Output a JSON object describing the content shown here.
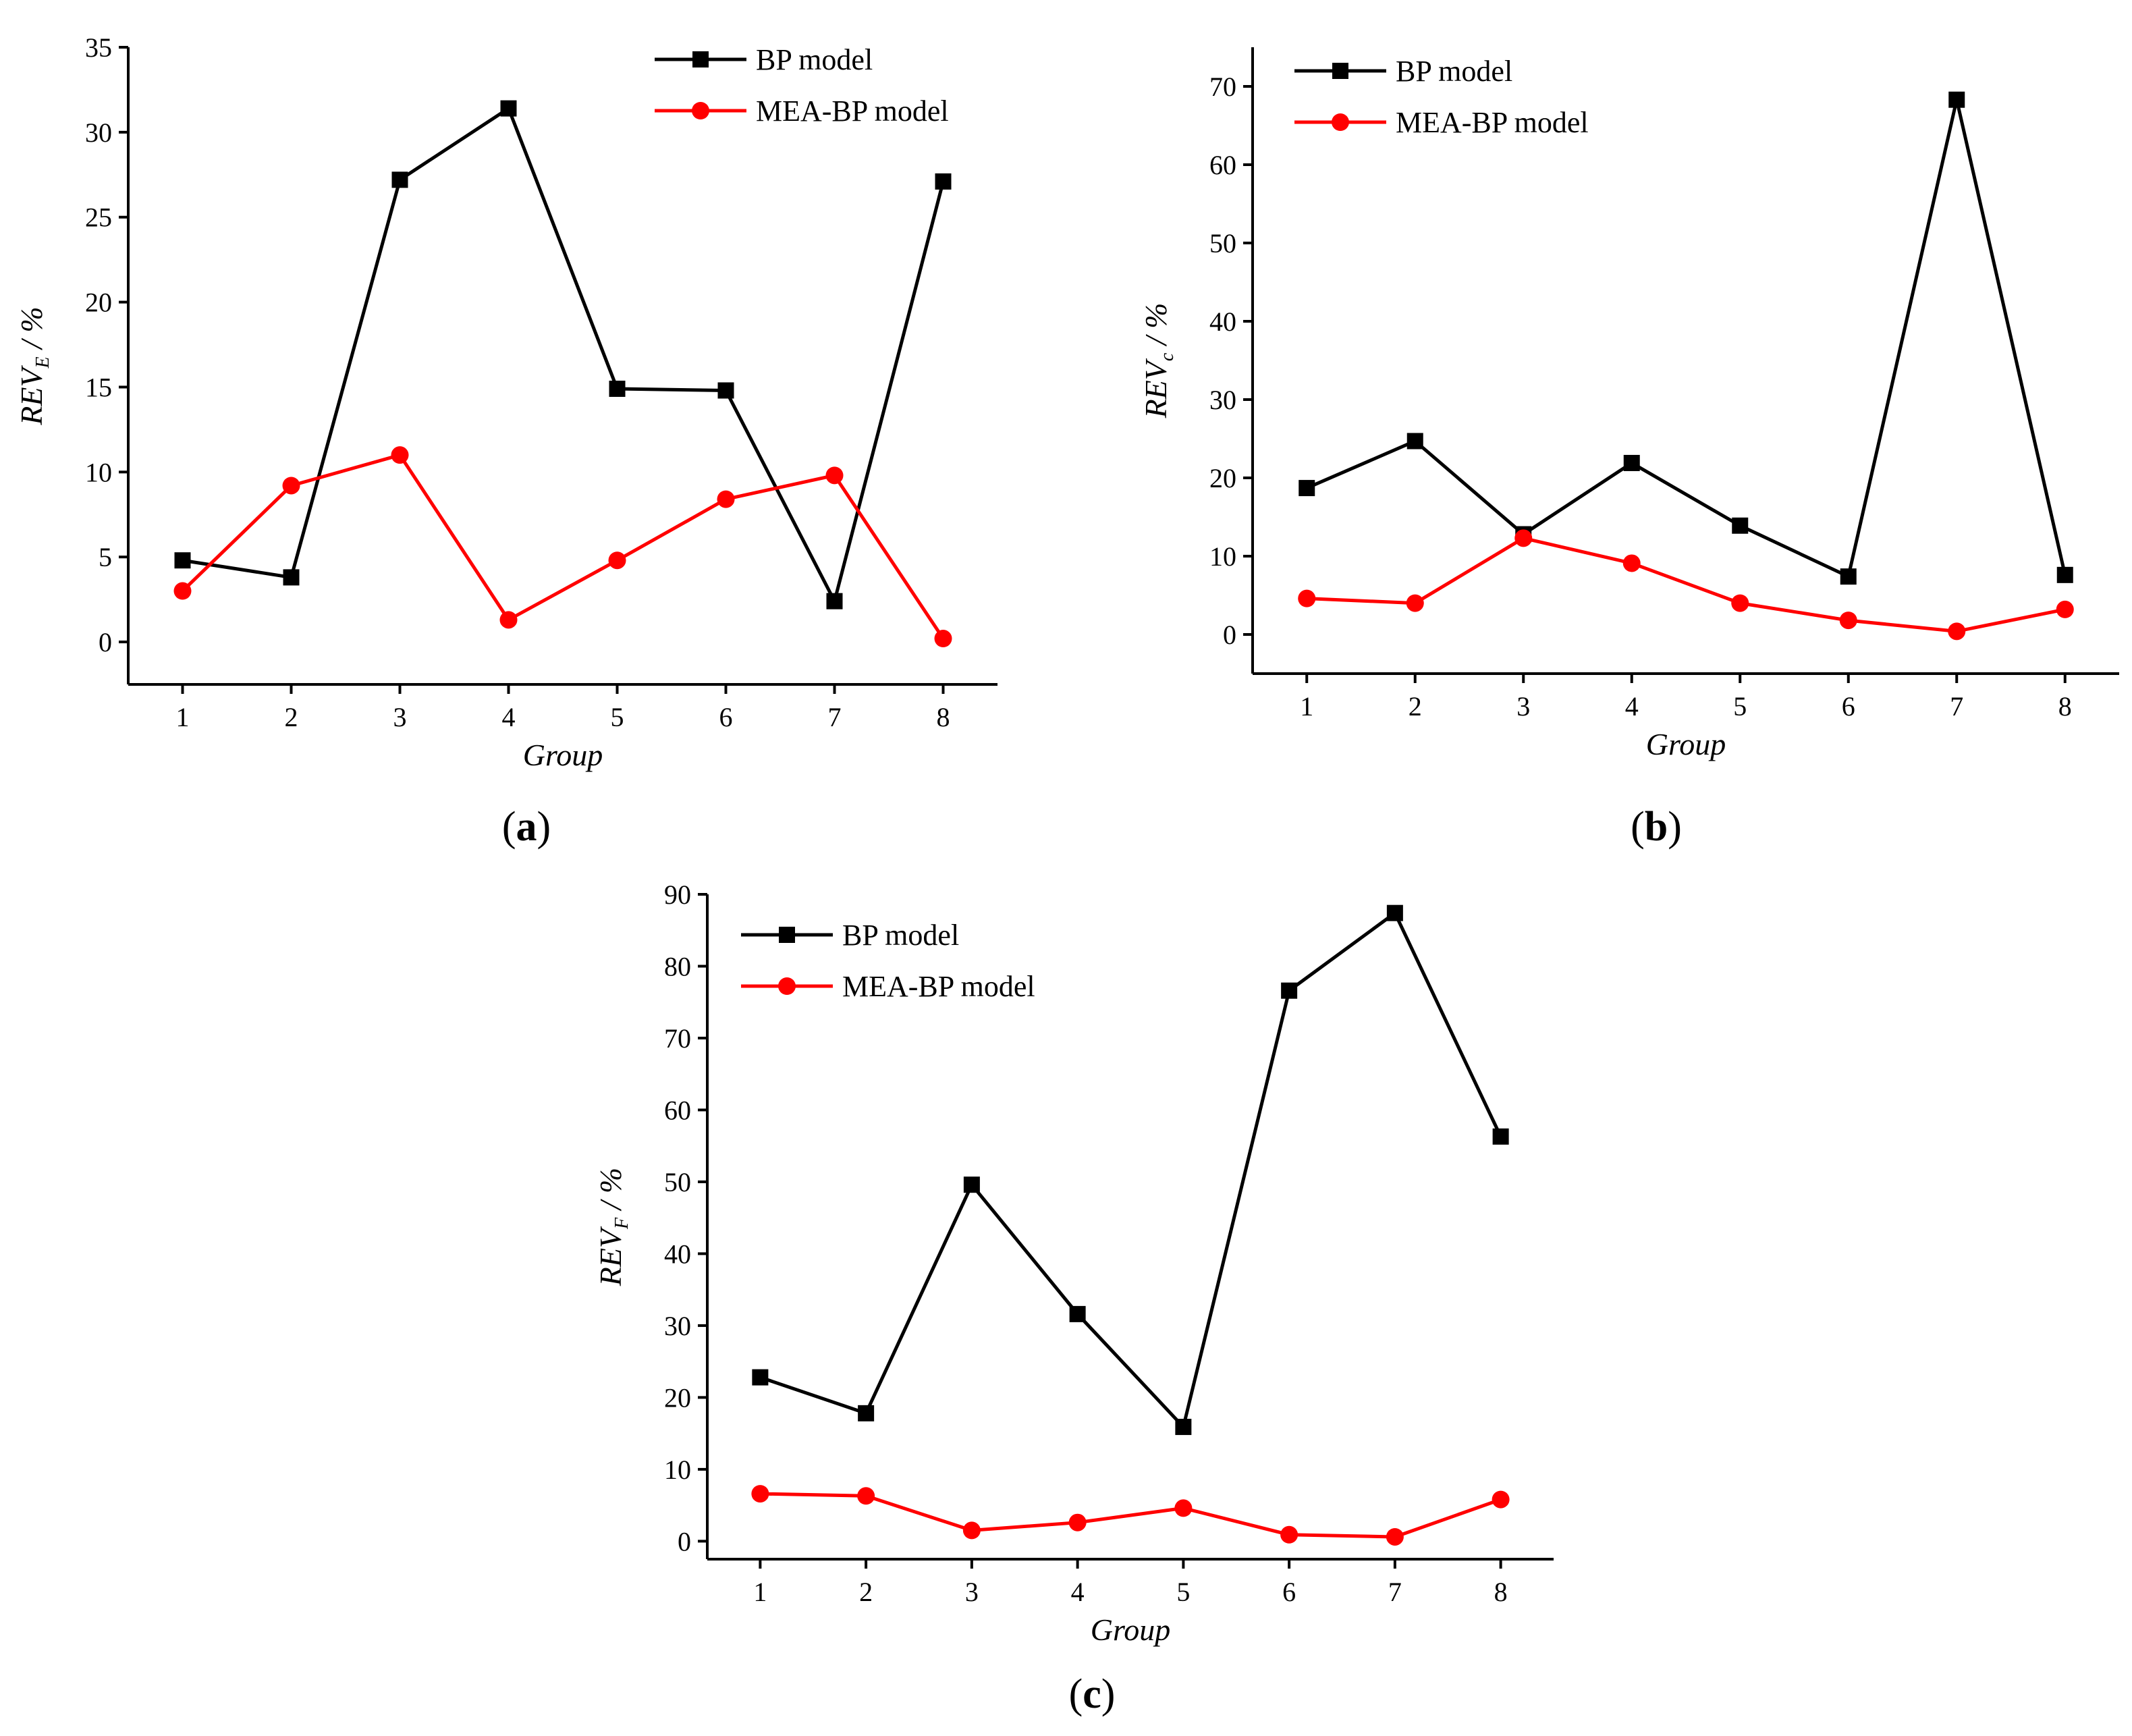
{
  "colors": {
    "bp": "#000000",
    "mea": "#ff0000"
  },
  "chart_data": [
    {
      "type": "line",
      "panel_label": "a",
      "title": "",
      "xlabel": "Group",
      "ylabel_main": "REV",
      "ylabel_sub": "E",
      "ylabel_unit": " / %",
      "categories": [
        1,
        2,
        3,
        4,
        5,
        6,
        7,
        8
      ],
      "xlim": [
        0.5,
        8.5
      ],
      "ylim": [
        -2.5,
        35
      ],
      "yticks": [
        0,
        5,
        10,
        15,
        20,
        25,
        30,
        35
      ],
      "legend_position": "top-right",
      "series": [
        {
          "name": "BP model",
          "marker": "square",
          "values": [
            4.8,
            3.8,
            27.2,
            31.4,
            14.9,
            14.8,
            2.4,
            27.1
          ]
        },
        {
          "name": "MEA-BP model",
          "marker": "circle",
          "values": [
            3.0,
            9.2,
            11.0,
            1.3,
            4.8,
            8.4,
            9.8,
            0.2
          ]
        }
      ]
    },
    {
      "type": "line",
      "panel_label": "b",
      "title": "",
      "xlabel": "Group",
      "ylabel_main": "REV",
      "ylabel_sub": "c",
      "ylabel_unit": " / %",
      "categories": [
        1,
        2,
        3,
        4,
        5,
        6,
        7,
        8
      ],
      "xlim": [
        0.5,
        8.5
      ],
      "ylim": [
        -5,
        75
      ],
      "yticks": [
        0,
        10,
        20,
        30,
        40,
        50,
        60,
        70
      ],
      "legend_position": "top-left",
      "series": [
        {
          "name": "BP model",
          "marker": "square",
          "values": [
            18.7,
            24.7,
            12.8,
            21.9,
            13.9,
            7.4,
            68.3,
            7.6
          ]
        },
        {
          "name": "MEA-BP model",
          "marker": "circle",
          "values": [
            4.6,
            4.0,
            12.3,
            9.1,
            4.0,
            1.8,
            0.4,
            3.2
          ]
        }
      ]
    },
    {
      "type": "line",
      "panel_label": "c",
      "title": "",
      "xlabel": "Group",
      "ylabel_main": "REV",
      "ylabel_sub": "F",
      "ylabel_unit": " / %",
      "categories": [
        1,
        2,
        3,
        4,
        5,
        6,
        7,
        8
      ],
      "xlim": [
        0.5,
        8.5
      ],
      "ylim": [
        -2.5,
        90
      ],
      "yticks": [
        0,
        10,
        20,
        30,
        40,
        50,
        60,
        70,
        80,
        90
      ],
      "legend_position": "top-left",
      "series": [
        {
          "name": "BP model",
          "marker": "square",
          "values": [
            22.8,
            17.8,
            49.6,
            31.6,
            15.9,
            76.6,
            87.4,
            56.3
          ]
        },
        {
          "name": "MEA-BP model",
          "marker": "circle",
          "values": [
            6.6,
            6.3,
            1.5,
            2.6,
            4.6,
            0.9,
            0.6,
            5.8
          ]
        }
      ]
    }
  ]
}
